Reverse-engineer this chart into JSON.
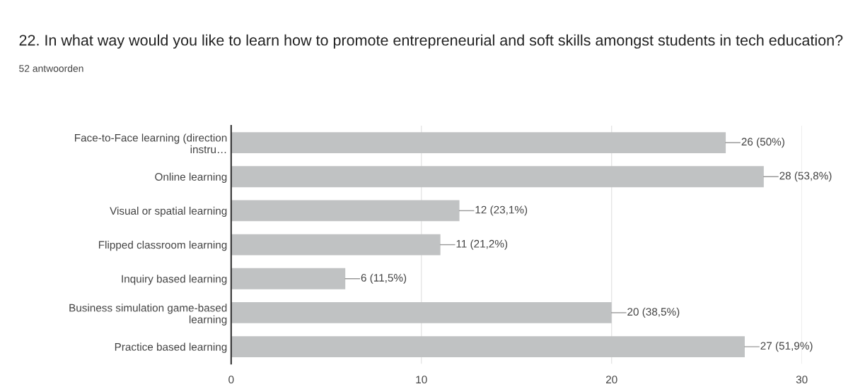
{
  "chart_data": {
    "type": "bar",
    "orientation": "horizontal",
    "title": "22. In what way would you like to learn how to promote entrepreneurial and soft skills amongst students in tech education?",
    "subtitle": "52 antwoorden",
    "categories": [
      "Face-to-Face learning (direction\ninstru…",
      "Online learning",
      "Visual or spatial learning",
      "Flipped classroom learning",
      "Inquiry based learning",
      "Business simulation game-based\nlearning",
      "Practice based learning"
    ],
    "values": [
      26,
      28,
      12,
      11,
      6,
      20,
      27
    ],
    "value_labels": [
      "26 (50%)",
      "28 (53,8%)",
      "12 (23,1%)",
      "11 (21,2%)",
      "6 (11,5%)",
      "20 (38,5%)",
      "27 (51,9%)"
    ],
    "color": "#c0c2c3",
    "xlim": [
      0,
      30
    ],
    "xticks": [
      0,
      10,
      20,
      30
    ],
    "grid": "x"
  }
}
